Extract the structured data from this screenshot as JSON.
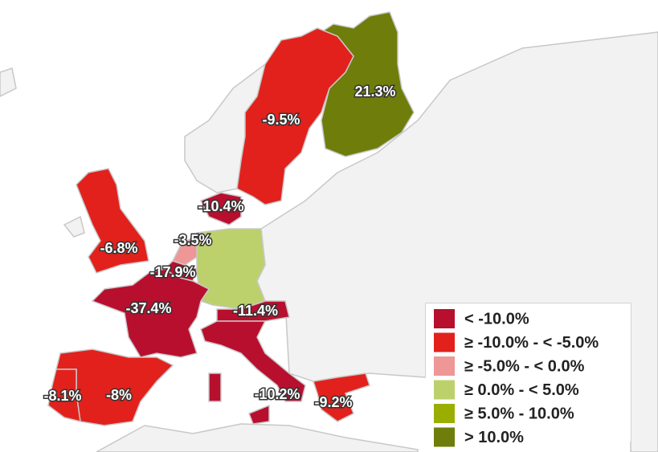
{
  "map": {
    "regions": [
      {
        "label": "21.3%",
        "color": "#6f7d0b"
      },
      {
        "label": "-9.5%",
        "color": "#e2211c"
      },
      {
        "label": "-10.4%",
        "color": "#b80f2e"
      },
      {
        "label": "-6.8%",
        "color": "#e2211c"
      },
      {
        "label": "-3.5%",
        "color": "#ef9797"
      },
      {
        "label": "-17.9%",
        "color": "#b80f2e"
      },
      {
        "label": "-37.4%",
        "color": "#b80f2e"
      },
      {
        "label": "-11.4%",
        "color": "#b80f2e"
      },
      {
        "label": "-10.2%",
        "color": "#b80f2e"
      },
      {
        "label": "-8%",
        "color": "#e2211c"
      },
      {
        "label": "-8.1%",
        "color": "#e2211c"
      },
      {
        "label": "-9.2%",
        "color": "#e2211c"
      },
      {
        "color": "#bcd16c"
      }
    ],
    "legend": [
      {
        "label": "< -10.0%",
        "color": "#b80f2e"
      },
      {
        "label": "≥ -10.0% - < -5.0%",
        "color": "#e2211c"
      },
      {
        "label": "≥ -5.0% - < 0.0%",
        "color": "#ef9797"
      },
      {
        "label": "≥ 0.0% - < 5.0%",
        "color": "#bcd16c"
      },
      {
        "label": "≥ 5.0% - 10.0%",
        "color": "#9aae00"
      },
      {
        "label": "> 10.0%",
        "color": "#6f7d0b"
      }
    ]
  }
}
